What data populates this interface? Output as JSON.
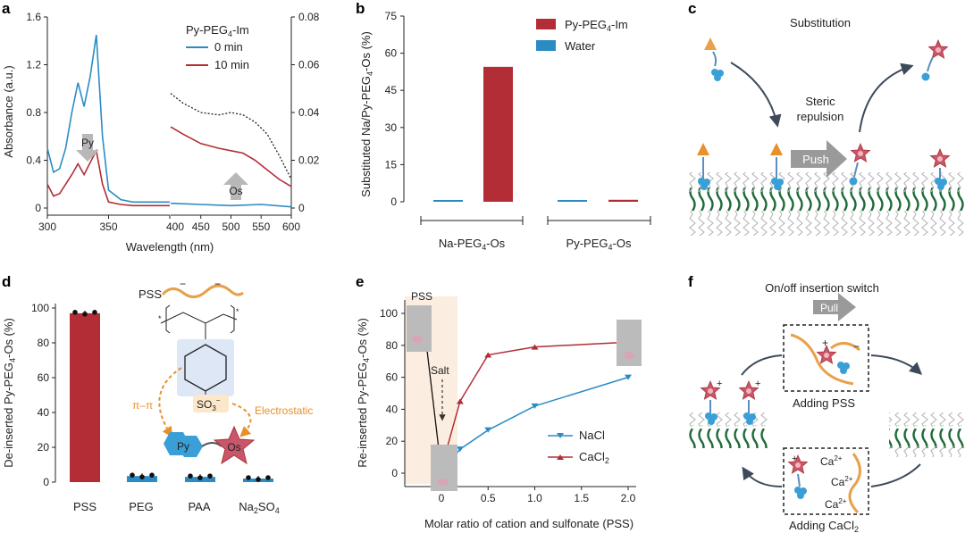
{
  "panels": {
    "a": {
      "label": "a",
      "legend_title": "Py-PEG",
      "legend_title_sub": "4",
      "legend_title_suffix": "-Im",
      "legend": [
        "0 min",
        "10 min"
      ],
      "ylabel_left": "Absorbance (a.u.)",
      "xlabel": "Wavelength (nm)",
      "left_ticks": [
        "0",
        "0.4",
        "0.8",
        "1.2",
        "1.6"
      ],
      "right_ticks": [
        "0",
        "0.02",
        "0.04",
        "0.06",
        "0.08"
      ],
      "x_ticks": [
        "300",
        "350",
        "400",
        "450",
        "500",
        "550",
        "600"
      ],
      "arrow_py": "Py",
      "arrow_os": "Os"
    },
    "b": {
      "label": "b",
      "ylabel": "Substituted Na/Py-PEG",
      "ylabel_sub": "4",
      "ylabel_suffix": "-Os (%)",
      "ticks": [
        "0",
        "15",
        "30",
        "45",
        "60",
        "75"
      ],
      "legend": [
        "Py-PEG",
        "Water"
      ],
      "legend_sub": "4",
      "legend_suffix": "-Im",
      "group1": "Na-PEG",
      "group2": "Py-PEG",
      "group_sub": "4",
      "group_suffix": "-Os"
    },
    "c": {
      "label": "c",
      "title": "Substitution",
      "steric": "Steric",
      "repulsion": "repulsion",
      "push": "Push"
    },
    "d": {
      "label": "d",
      "ylabel": "De-inserted Py-PEG",
      "ylabel_sub": "4",
      "ylabel_suffix": "-Os (%)",
      "ticks": [
        "0",
        "20",
        "40",
        "60",
        "80",
        "100"
      ],
      "categories": [
        "PSS",
        "PEG",
        "PAA",
        "Na"
      ],
      "last_sub1": "2",
      "last_mid": "SO",
      "last_sub2": "4",
      "pss_label": "PSS",
      "pi": "π–π",
      "electro": "Electrostatic",
      "so3": "SO",
      "so3_sub": "3",
      "so3_sup": "−",
      "py": "Py",
      "os": "Os"
    },
    "e": {
      "label": "e",
      "ylabel": "Re-inserted Py-PEG",
      "ylabel_sub": "4",
      "ylabel_suffix": "-Os (%)",
      "xlabel": "Molar ratio of cation and sulfonate  (PSS)",
      "x_ticks": [
        "0",
        "0.5",
        "1.0",
        "1.5",
        "2.0"
      ],
      "y_ticks": [
        "0",
        "20",
        "40",
        "60",
        "80",
        "100"
      ],
      "pss": "PSS",
      "salt": "Salt",
      "legend": [
        "NaCl",
        "CaCl"
      ],
      "legend_sub": "2"
    },
    "f": {
      "label": "f",
      "title": "On/off insertion switch",
      "pull": "Pull",
      "adding_pss": "Adding PSS",
      "adding_ca": "Adding CaCl",
      "adding_ca_sub": "2",
      "ca": "Ca",
      "ca_sup": "2+",
      "plus": "+",
      "minus": "−"
    }
  },
  "colors": {
    "blue": "#2b8cc4",
    "red": "#b22d35",
    "orange": "#e8902a",
    "green": "#1f6b3a",
    "pink": "#c9566a",
    "cyan": "#3a9fd6"
  },
  "chart_data": [
    {
      "panel": "a",
      "type": "line",
      "xlabel": "Wavelength (nm)",
      "ylabel": "Absorbance (a.u.)",
      "xlim": [
        300,
        600
      ],
      "ylim_left": [
        0,
        1.6
      ],
      "ylim_right": [
        0,
        0.08
      ],
      "series": [
        {
          "name": "0 min",
          "axis": "left",
          "x": [
            300,
            305,
            310,
            315,
            320,
            325,
            330,
            335,
            340,
            345,
            350,
            360,
            370,
            380,
            390,
            400
          ],
          "y": [
            0.5,
            0.3,
            0.33,
            0.5,
            0.8,
            1.05,
            0.85,
            1.1,
            1.45,
            0.6,
            0.15,
            0.07,
            0.05,
            0.05,
            0.05,
            0.05
          ]
        },
        {
          "name": "10 min",
          "axis": "left",
          "x": [
            300,
            305,
            310,
            315,
            320,
            325,
            330,
            335,
            340,
            345,
            350,
            360,
            370,
            380,
            390,
            400
          ],
          "y": [
            0.2,
            0.1,
            0.12,
            0.2,
            0.28,
            0.37,
            0.28,
            0.38,
            0.48,
            0.2,
            0.05,
            0.03,
            0.02,
            0.02,
            0.02,
            0.02
          ]
        },
        {
          "name": "0 min",
          "axis": "right",
          "x": [
            400,
            450,
            500,
            550,
            600
          ],
          "y": [
            0.002,
            0.0015,
            0.001,
            0.0015,
            0.0005
          ]
        },
        {
          "name": "10 min",
          "axis": "right",
          "x": [
            400,
            420,
            450,
            480,
            500,
            520,
            540,
            560,
            580,
            600
          ],
          "y": [
            0.034,
            0.031,
            0.027,
            0.025,
            0.024,
            0.023,
            0.02,
            0.016,
            0.012,
            0.009
          ]
        },
        {
          "axis": "right",
          "x": [
            400,
            420,
            450,
            480,
            500,
            520,
            540,
            560,
            580,
            600
          ],
          "y": [
            0.048,
            0.044,
            0.04,
            0.039,
            0.04,
            0.039,
            0.036,
            0.031,
            0.022,
            0.012
          ]
        }
      ]
    },
    {
      "panel": "b",
      "type": "bar",
      "categories": [
        "Na-PEG4-Os",
        "Py-PEG4-Os"
      ],
      "ylim": [
        0,
        75
      ],
      "series": [
        {
          "name": "Water",
          "values": [
            0.5,
            0.3
          ]
        },
        {
          "name": "Py-PEG4-Im",
          "values": [
            54.5,
            0.8
          ]
        }
      ]
    },
    {
      "panel": "d",
      "type": "bar",
      "categories": [
        "PSS",
        "PEG",
        "PAA",
        "Na2SO4"
      ],
      "values": [
        97,
        3.5,
        3,
        1.5
      ],
      "ylim": [
        0,
        100
      ]
    },
    {
      "panel": "e",
      "type": "line",
      "xlabel": "Molar ratio of cation and sulfonate  (PSS)",
      "ylabel": "Re-inserted Py-PEG4-Os (%)",
      "xlim": [
        -0.3,
        2.1
      ],
      "ylim": [
        0,
        100
      ],
      "series": [
        {
          "name": "NaCl",
          "x": [
            0,
            0.2,
            0.5,
            1.0,
            2.0
          ],
          "y": [
            1,
            15,
            27,
            42,
            60
          ]
        },
        {
          "name": "CaCl2",
          "x": [
            0,
            0.2,
            0.5,
            1.0,
            2.0
          ],
          "y": [
            3,
            45,
            74,
            79,
            82
          ]
        }
      ],
      "pss_point": {
        "x": -0.2,
        "y": 100
      }
    }
  ]
}
